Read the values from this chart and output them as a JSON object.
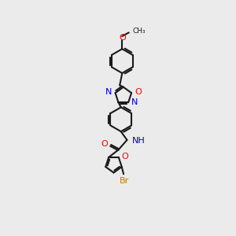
{
  "background_color": "#ebebeb",
  "bond_color": "#1a1a1a",
  "atom_colors": {
    "O": "#ff0000",
    "N": "#0000cd",
    "Br": "#cc7700",
    "C": "#1a1a1a",
    "H": "#1a1a1a"
  },
  "hex_r": 20,
  "pent_r": 14,
  "lw": 1.5,
  "fs": 8.0
}
